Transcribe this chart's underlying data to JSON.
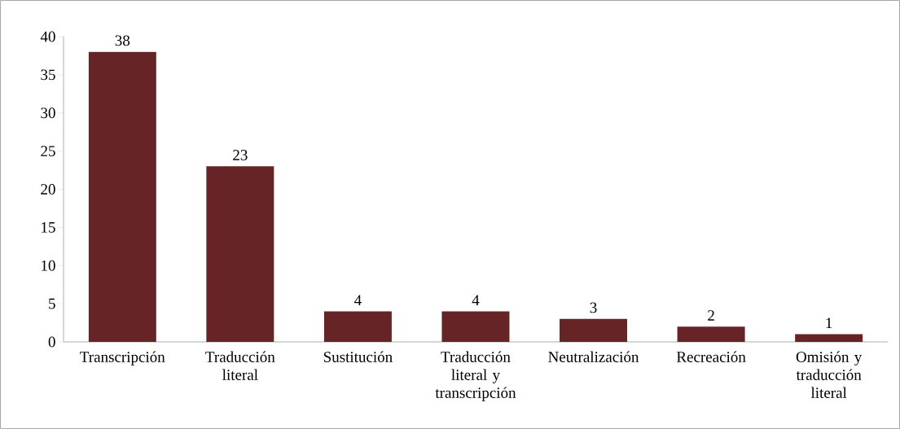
{
  "chart_data": {
    "type": "bar",
    "categories": [
      "Transcripción",
      "Traducción literal",
      "Sustitución",
      "Traducción literal y transcripción",
      "Neutralización",
      "Recreación",
      "Omisión y traducción literal"
    ],
    "values": [
      38,
      23,
      4,
      4,
      3,
      2,
      1
    ],
    "color": "#662426",
    "ylim": [
      0,
      40
    ],
    "yticks": [
      0,
      5,
      10,
      15,
      20,
      25,
      30,
      35,
      40
    ],
    "data_labels": true,
    "grid": false
  }
}
